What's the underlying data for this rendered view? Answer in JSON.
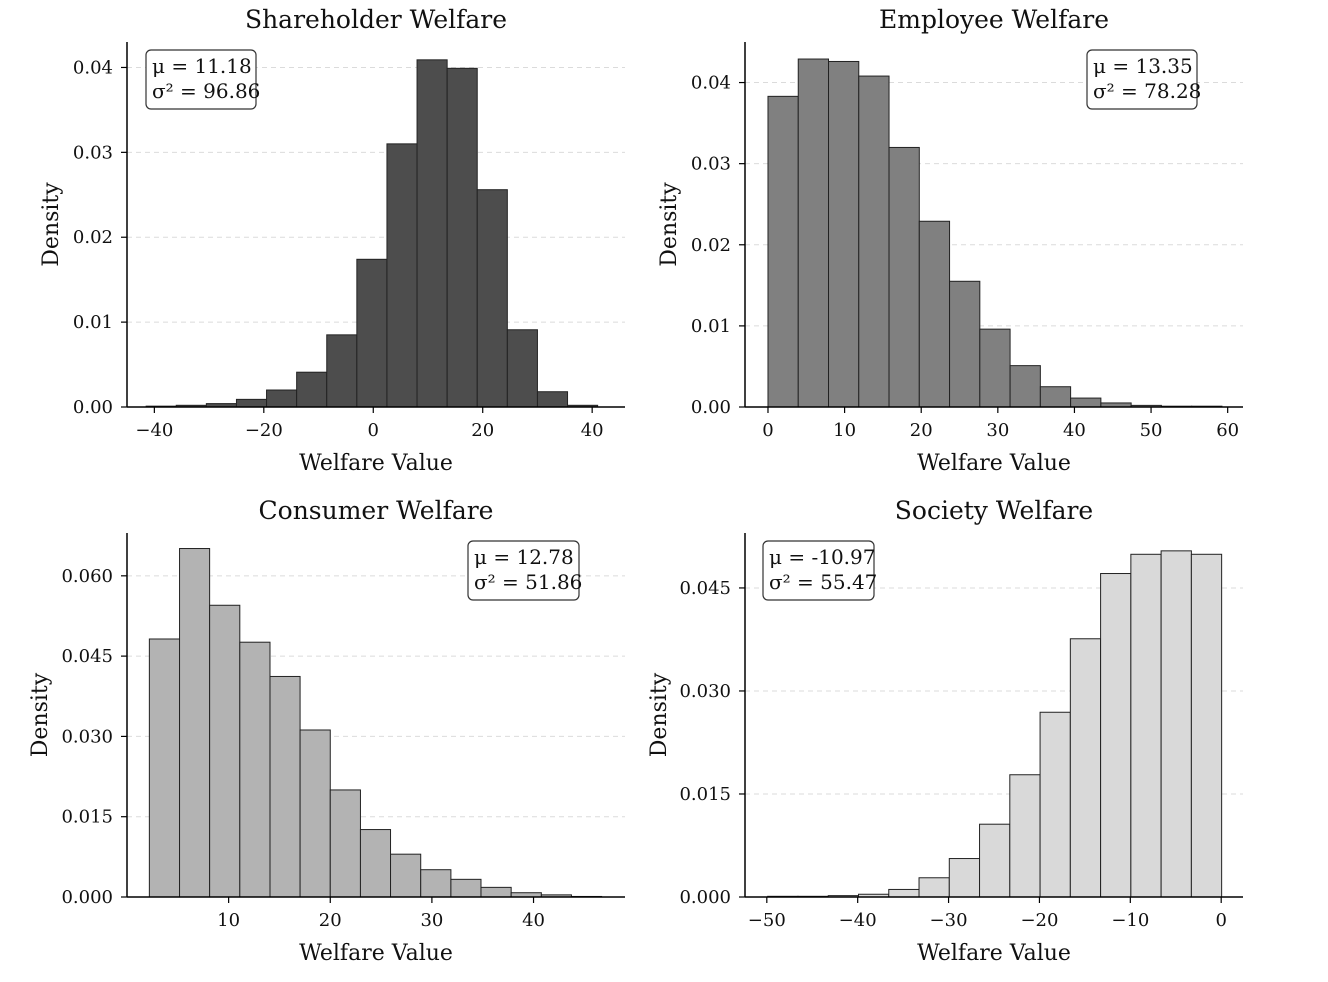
{
  "chart_data": [
    {
      "type": "bar",
      "title": "Shareholder Welfare",
      "xlabel": "Welfare Value",
      "ylabel": "Density",
      "color": "#4d4d4d",
      "xlim": [
        -45,
        46
      ],
      "ylim": [
        0,
        0.043
      ],
      "xticks": [
        -40,
        -20,
        0,
        20,
        40
      ],
      "xtick_labels": [
        "−40",
        "−20",
        "0",
        "20",
        "40"
      ],
      "yticks": [
        0,
        0.01,
        0.02,
        0.03,
        0.04
      ],
      "ytick_labels": [
        "0.00",
        "0.01",
        "0.02",
        "0.03",
        "0.04"
      ],
      "bin_edges": [
        -41.5,
        -36,
        -30.5,
        -25,
        -19.5,
        -14,
        -8.5,
        -3,
        2.5,
        8,
        13.5,
        19,
        24.5,
        30,
        35.5,
        41
      ],
      "values": [
        0.0001,
        0.0002,
        0.0004,
        0.0009,
        0.002,
        0.0041,
        0.0085,
        0.0174,
        0.031,
        0.0409,
        0.0399,
        0.0256,
        0.0091,
        0.0018,
        0.0002
      ],
      "stats": {
        "mean": "μ = 11.18",
        "variance": "σ² = 96.86"
      },
      "stats_position": "top-left"
    },
    {
      "type": "bar",
      "title": "Employee Welfare",
      "xlabel": "Welfare Value",
      "ylabel": "Density",
      "color": "#808080",
      "xlim": [
        -3,
        62
      ],
      "ylim": [
        0,
        0.045
      ],
      "xticks": [
        0,
        10,
        20,
        30,
        40,
        50,
        60
      ],
      "xtick_labels": [
        "0",
        "10",
        "20",
        "30",
        "40",
        "50",
        "60"
      ],
      "yticks": [
        0,
        0.01,
        0.02,
        0.03,
        0.04
      ],
      "ytick_labels": [
        "0.00",
        "0.01",
        "0.02",
        "0.03",
        "0.04"
      ],
      "bin_edges": [
        0,
        3.95,
        7.9,
        11.85,
        15.8,
        19.75,
        23.7,
        27.65,
        31.6,
        35.55,
        39.5,
        43.45,
        47.4,
        51.35,
        55.3,
        59.25
      ],
      "values": [
        0.0383,
        0.0429,
        0.0426,
        0.0408,
        0.032,
        0.0229,
        0.0155,
        0.0096,
        0.0051,
        0.0025,
        0.0011,
        0.0005,
        0.0002,
        0.0001,
        0.0001
      ],
      "stats": {
        "mean": "μ = 13.35",
        "variance": "σ² = 78.28"
      },
      "stats_position": "top-right"
    },
    {
      "type": "bar",
      "title": "Consumer Welfare",
      "xlabel": "Welfare Value",
      "ylabel": "Density",
      "color": "#b3b3b3",
      "xlim": [
        0,
        49
      ],
      "ylim": [
        0,
        0.068
      ],
      "xticks": [
        10,
        20,
        30,
        40
      ],
      "xtick_labels": [
        "10",
        "20",
        "30",
        "40"
      ],
      "yticks": [
        0,
        0.015,
        0.03,
        0.045,
        0.06
      ],
      "ytick_labels": [
        "0.000",
        "0.015",
        "0.030",
        "0.045",
        "0.060"
      ],
      "bin_edges": [
        2.2,
        5.17,
        8.13,
        11.1,
        14.07,
        17.03,
        20,
        22.97,
        25.93,
        28.9,
        31.87,
        34.83,
        37.8,
        40.77,
        43.73,
        46.7
      ],
      "values": [
        0.0482,
        0.0651,
        0.0545,
        0.0476,
        0.0412,
        0.0312,
        0.02,
        0.0126,
        0.008,
        0.0051,
        0.0033,
        0.0018,
        0.0008,
        0.0004,
        0.0001
      ],
      "stats": {
        "mean": "μ = 12.78",
        "variance": "σ² = 51.86"
      },
      "stats_position": "top-right"
    },
    {
      "type": "bar",
      "title": "Society Welfare",
      "xlabel": "Welfare Value",
      "ylabel": "Density",
      "color": "#d9d9d9",
      "xlim": [
        -52.4,
        2.4
      ],
      "ylim": [
        0,
        0.053
      ],
      "xticks": [
        -50,
        -40,
        -30,
        -20,
        -10,
        0
      ],
      "xtick_labels": [
        "−50",
        "−40",
        "−30",
        "−20",
        "−10",
        "0"
      ],
      "yticks": [
        0,
        0.015,
        0.03,
        0.045
      ],
      "ytick_labels": [
        "0.000",
        "0.015",
        "0.030",
        "0.045"
      ],
      "bin_edges": [
        -49.9,
        -46.57,
        -43.24,
        -39.91,
        -36.58,
        -33.25,
        -29.92,
        -26.59,
        -23.26,
        -19.93,
        -16.6,
        -13.27,
        -9.94,
        -6.61,
        -3.28,
        0.05
      ],
      "values": [
        0.0001,
        0.0001,
        0.0002,
        0.0004,
        0.0011,
        0.0028,
        0.0056,
        0.0106,
        0.0178,
        0.0269,
        0.0376,
        0.0471,
        0.0499,
        0.0504,
        0.0499
      ],
      "stats": {
        "mean": "μ = -10.97",
        "variance": "σ² = 55.47"
      },
      "stats_position": "top-left"
    }
  ]
}
